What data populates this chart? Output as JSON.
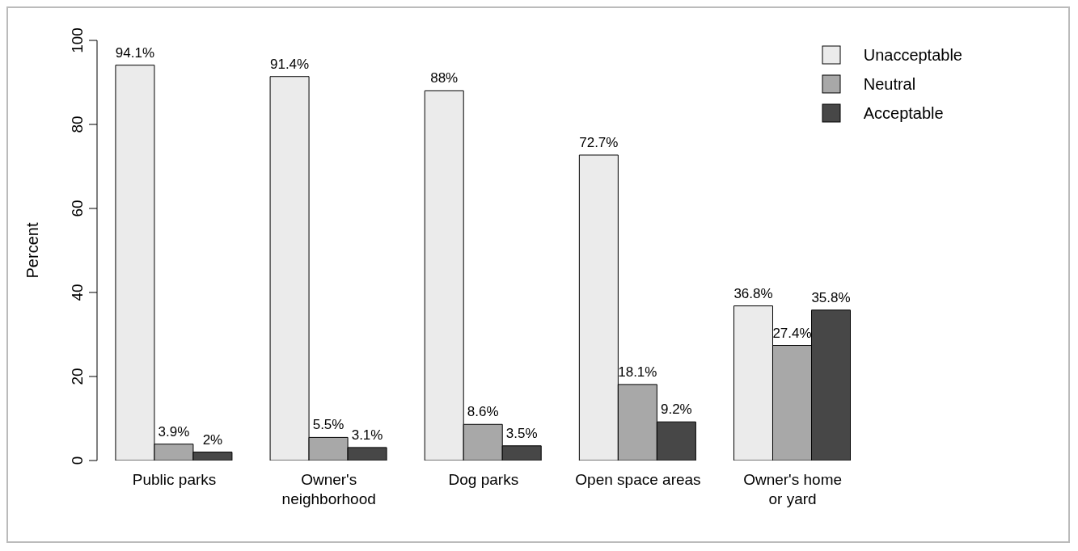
{
  "chart_data": {
    "type": "bar",
    "ylabel": "Percent",
    "categories": [
      "Public parks",
      "Owner's\nneighborhood",
      "Dog parks",
      "Open space areas",
      "Owner's home\nor yard"
    ],
    "series": [
      {
        "name": "Unacceptable",
        "color": "#ebebeb",
        "values": [
          94.1,
          91.4,
          88,
          72.7,
          36.8
        ],
        "value_labels": [
          "94.1%",
          "91.4%",
          "88%",
          "72.7%",
          "36.8%"
        ]
      },
      {
        "name": "Neutral",
        "color": "#a8a8a8",
        "values": [
          3.9,
          5.5,
          8.6,
          18.1,
          27.4
        ],
        "value_labels": [
          "3.9%",
          "5.5%",
          "8.6%",
          "18.1%",
          "27.4%"
        ]
      },
      {
        "name": "Acceptable",
        "color": "#474747",
        "values": [
          2,
          3.1,
          3.5,
          9.2,
          35.8
        ],
        "value_labels": [
          "2%",
          "3.1%",
          "3.5%",
          "9.2%",
          "35.8%"
        ]
      }
    ],
    "ylim": [
      0,
      100
    ],
    "yticks": [
      0,
      20,
      40,
      60,
      80,
      100
    ],
    "grid": false,
    "legend": "top right"
  }
}
